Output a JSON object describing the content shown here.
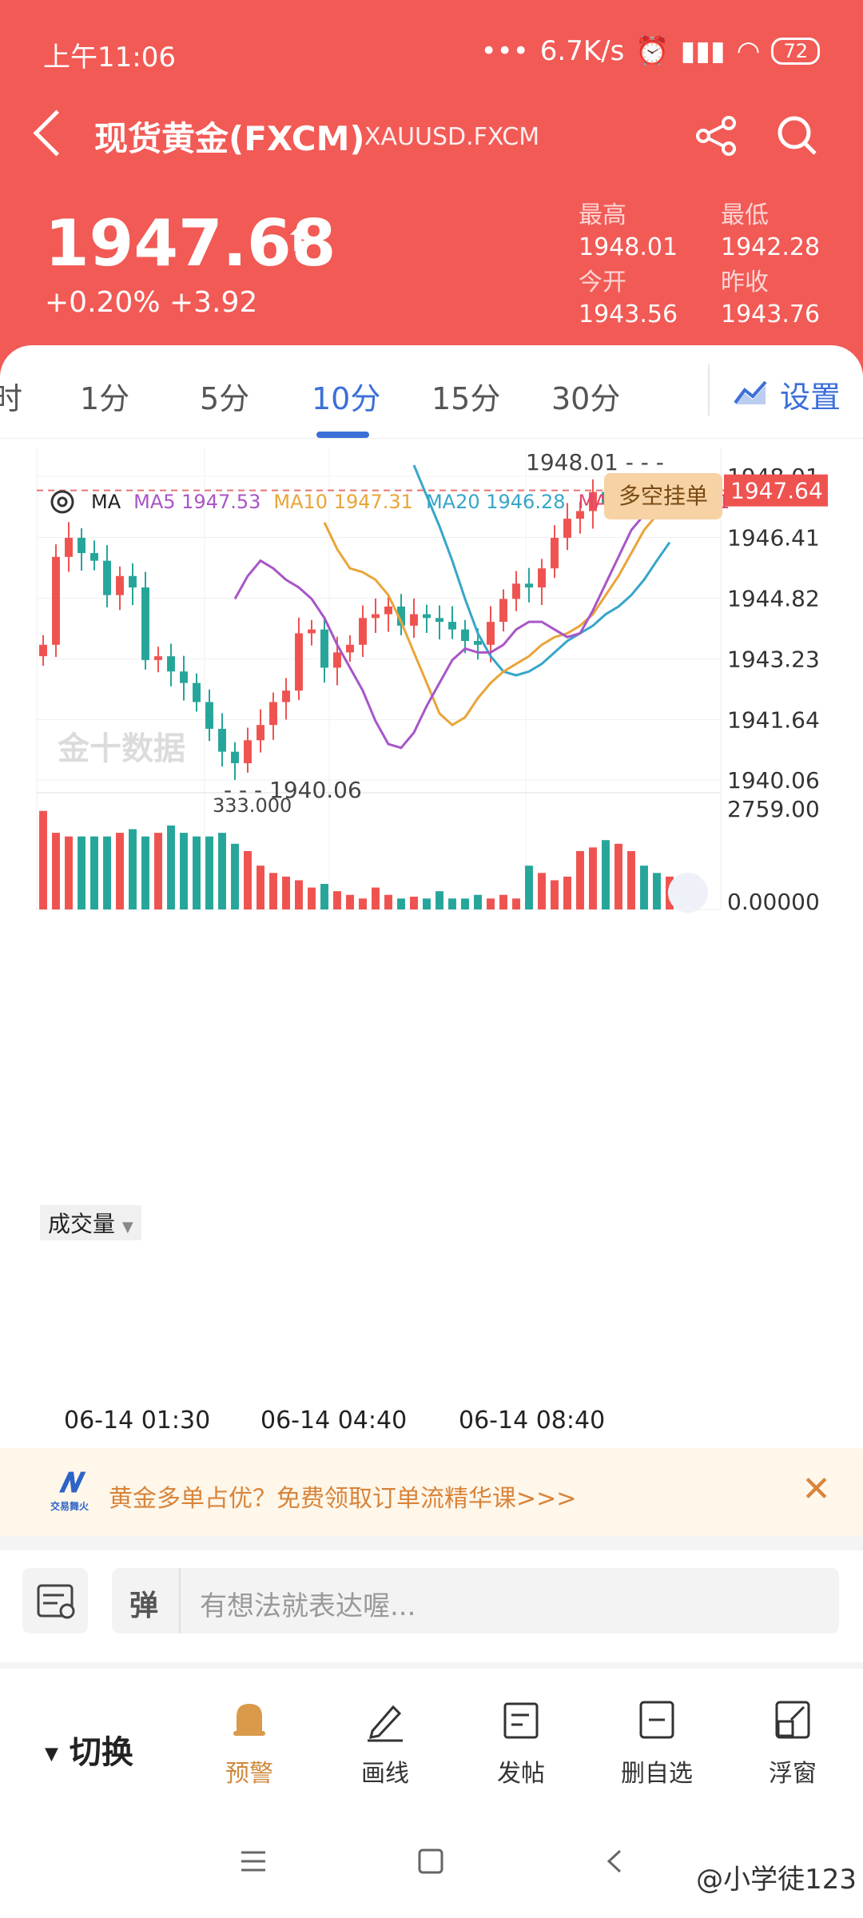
{
  "status_bar": {
    "time": "上午11:06",
    "speed": "6.7K/s",
    "battery": "72"
  },
  "header": {
    "title": "现货黄金(FXCM)",
    "symbol": "XAUUSD.FXCM",
    "price": "1947.68",
    "change": "+0.20% +3.92",
    "stats": [
      {
        "label": "最高",
        "value": "1948.01"
      },
      {
        "label": "最低",
        "value": "1942.28"
      },
      {
        "label": "今开",
        "value": "1943.56"
      },
      {
        "label": "昨收",
        "value": "1943.76"
      }
    ]
  },
  "tabs": [
    "时",
    "1分",
    "5分",
    "10分",
    "15分",
    "30分"
  ],
  "active_tab": "10分",
  "settings_label": "设置",
  "legend": {
    "ma": "MA",
    "ma5": "MA5 1947.53",
    "ma10": "MA10 1947.31",
    "ma20": "MA20 1946.28",
    "ma220": "MA220 1944.81"
  },
  "pending_order_button": "多空挂单",
  "chart_labels": {
    "high_marker": "1948.01",
    "low_marker": "1940.06",
    "current_price": "1947.64",
    "volume_max_marker": "333.000",
    "volume_title": "成交量",
    "watermark": "金十数据"
  },
  "chart_data": {
    "type": "candlestick",
    "price_axis_ticks": [
      "1948.01",
      "1946.41",
      "1944.82",
      "1943.23",
      "1941.64",
      "1940.06"
    ],
    "volume_axis_ticks": [
      "2759.00",
      "0.00000"
    ],
    "x_axis_ticks": [
      "06-14 01:30",
      "06-14 04:40",
      "06-14 08:40"
    ],
    "ylim": [
      1940.06,
      1948.01
    ],
    "candles_close_approx": [
      1943.6,
      1945.9,
      1946.4,
      1946.0,
      1945.8,
      1944.9,
      1945.4,
      1945.1,
      1943.2,
      1943.3,
      1942.9,
      1942.6,
      1942.1,
      1941.4,
      1940.8,
      1940.5,
      1941.1,
      1941.5,
      1942.1,
      1942.4,
      1943.9,
      1944.0,
      1943.0,
      1943.4,
      1943.6,
      1944.3,
      1944.4,
      1944.6,
      1944.1,
      1944.4,
      1944.3,
      1944.2,
      1944.0,
      1943.7,
      1943.6,
      1944.2,
      1944.8,
      1945.2,
      1945.1,
      1945.6,
      1946.4,
      1946.9,
      1947.1,
      1947.6,
      1947.3,
      1947.9,
      1948.0,
      1947.7,
      1947.5,
      1947.64
    ],
    "ma5_approx": [
      1944.8,
      1945.4,
      1945.8,
      1945.6,
      1945.3,
      1945.1,
      1944.8,
      1944.3,
      1943.6,
      1943.0,
      1942.4,
      1941.6,
      1941.0,
      1940.9,
      1941.3,
      1942.0,
      1942.6,
      1943.2,
      1943.5,
      1943.4,
      1943.4,
      1943.6,
      1944.0,
      1944.2,
      1944.2,
      1944.0,
      1943.8,
      1943.9,
      1944.5,
      1945.2,
      1945.9,
      1946.6,
      1947.0,
      1947.3,
      1947.53
    ],
    "ma10_approx": [
      1946.8,
      1946.1,
      1945.6,
      1945.5,
      1945.3,
      1944.9,
      1944.2,
      1943.4,
      1942.6,
      1941.8,
      1941.5,
      1941.7,
      1942.2,
      1942.6,
      1942.9,
      1943.1,
      1943.3,
      1943.6,
      1943.8,
      1943.9,
      1944.1,
      1944.4,
      1944.9,
      1945.4,
      1946.0,
      1946.6,
      1947.0,
      1947.31
    ],
    "ma20_approx": [
      1948.3,
      1947.5,
      1946.7,
      1945.8,
      1944.8,
      1943.9,
      1943.3,
      1942.9,
      1942.8,
      1942.9,
      1943.1,
      1943.4,
      1943.7,
      1943.9,
      1944.1,
      1944.4,
      1944.6,
      1944.9,
      1945.3,
      1945.8,
      1946.28
    ],
    "volume_approx": [
      2700,
      2100,
      2000,
      2000,
      2000,
      2000,
      2100,
      2200,
      2000,
      2100,
      2300,
      2100,
      2000,
      2000,
      2100,
      1800,
      1600,
      1200,
      1000,
      900,
      800,
      600,
      700,
      500,
      400,
      300,
      600,
      400,
      300,
      350,
      300,
      500,
      300,
      300,
      400,
      300,
      400,
      300,
      1200,
      1000,
      800,
      900,
      1600,
      1700,
      1900,
      1800,
      1600,
      1200,
      1000,
      900
    ],
    "colors": {
      "up": "#ef5350",
      "down": "#26a69a",
      "ma5": "#a855c8",
      "ma10": "#e9a538",
      "ma20": "#36a6c9"
    }
  },
  "promo": {
    "logo": "交易舞火",
    "text": "黄金多单占优？免费领取订单流精华课>>>"
  },
  "comment": {
    "tag": "弹",
    "placeholder": "有想法就表达喔..."
  },
  "toolbar": {
    "switch": "切换",
    "items": [
      "预警",
      "画线",
      "发帖",
      "删自选",
      "浮窗"
    ]
  },
  "watermark": "@小学徒123"
}
